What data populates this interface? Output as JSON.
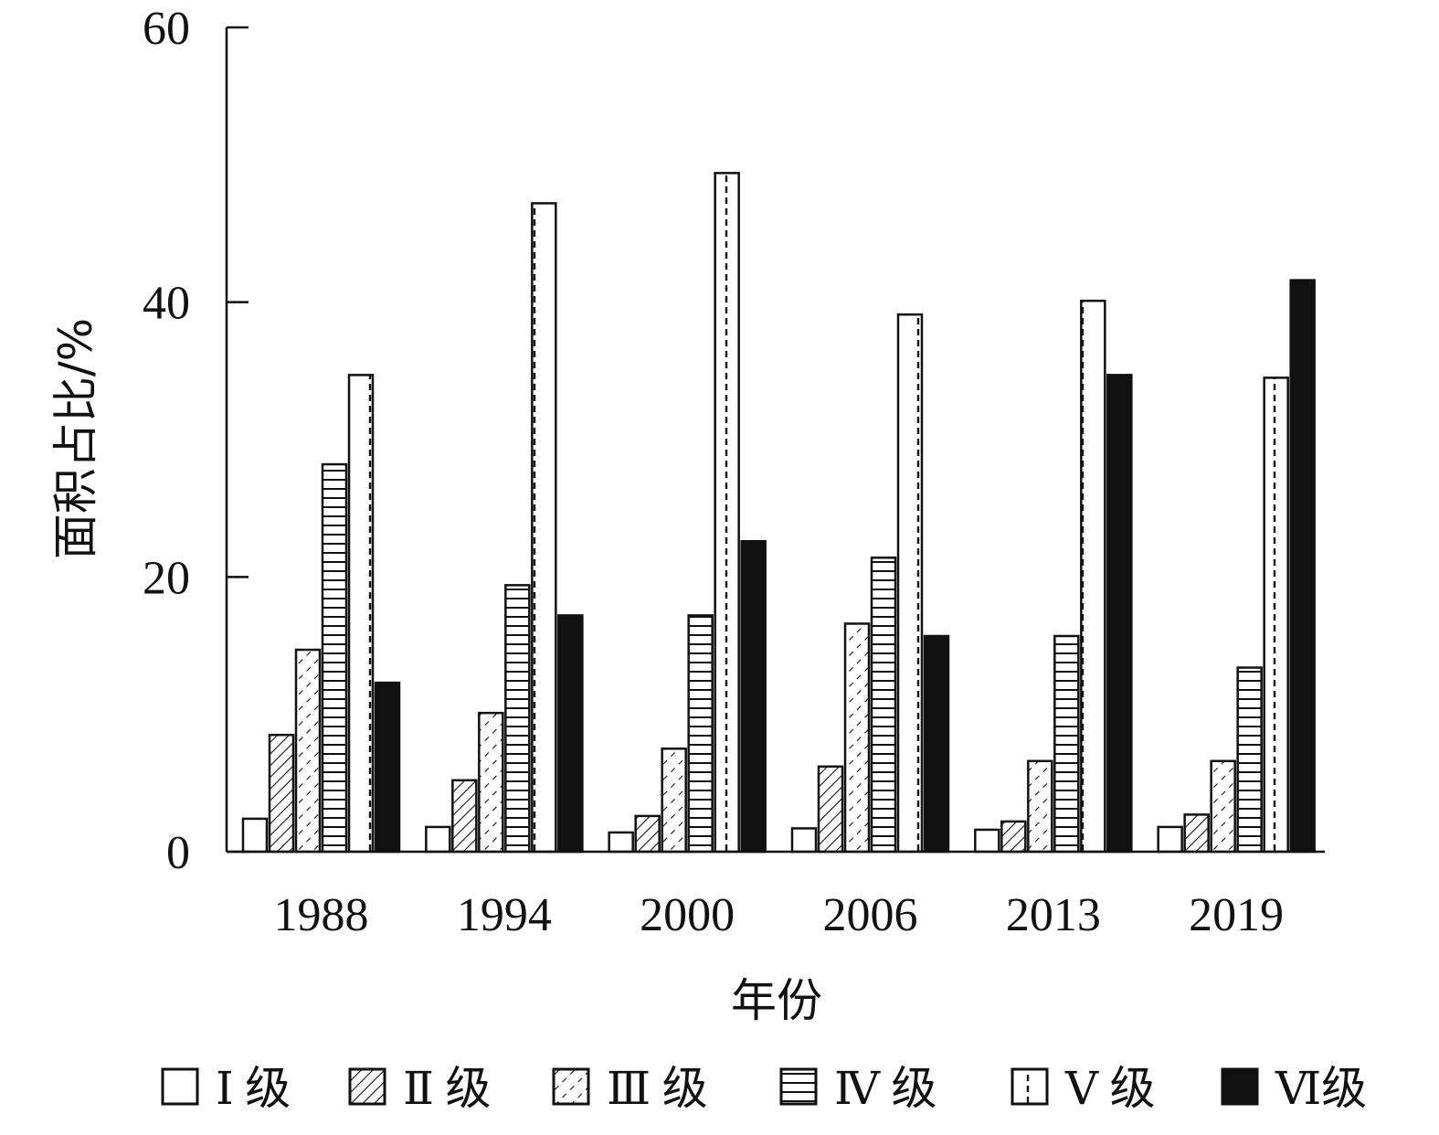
{
  "chart_data": {
    "type": "bar",
    "title": "",
    "xlabel": "年份",
    "ylabel": "面积占比/%",
    "ylim": [
      0,
      60
    ],
    "yticks": [
      0,
      20,
      40,
      60
    ],
    "grid": false,
    "legend_position": "bottom",
    "categories": [
      "1988",
      "1994",
      "2000",
      "2006",
      "2013",
      "2019"
    ],
    "series": [
      {
        "name": "Ⅰ 级",
        "pattern": "empty",
        "values": [
          2.4,
          1.8,
          1.4,
          1.7,
          1.6,
          1.8
        ]
      },
      {
        "name": "Ⅱ 级",
        "pattern": "diagonal",
        "values": [
          8.5,
          5.2,
          2.6,
          6.2,
          2.2,
          2.7
        ]
      },
      {
        "name": "Ⅲ 级",
        "pattern": "dashed-diagonal",
        "values": [
          14.7,
          10.1,
          7.5,
          16.6,
          6.6,
          6.6
        ]
      },
      {
        "name": "Ⅳ 级",
        "pattern": "horizontal",
        "values": [
          28.2,
          19.4,
          17.2,
          21.4,
          15.7,
          13.4
        ]
      },
      {
        "name": "Ⅴ 级",
        "pattern": "dashed-vertical",
        "values": [
          34.7,
          47.2,
          49.4,
          39.1,
          40.1,
          34.5
        ]
      },
      {
        "name": "Ⅵ级",
        "pattern": "solid",
        "values": [
          12.3,
          17.2,
          22.6,
          15.7,
          34.7,
          41.6
        ]
      }
    ]
  },
  "colors": {
    "ink": "#111111",
    "background": "#ffffff"
  }
}
